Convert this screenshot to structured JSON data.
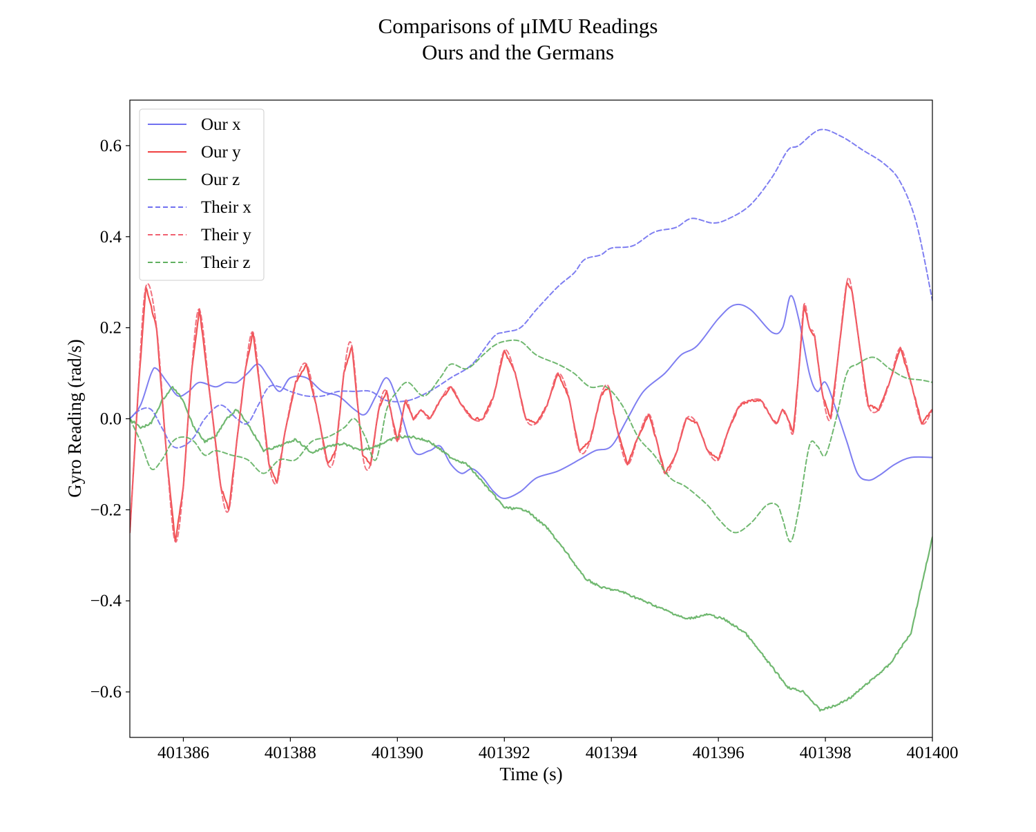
{
  "chart_data": {
    "type": "line",
    "title": [
      "Comparisons of μIMU Readings",
      "Ours and the Germans"
    ],
    "xlabel": "Time (s)",
    "ylabel": "Gyro Reading (rad/s)",
    "xlim": [
      401385,
      401400
    ],
    "ylim": [
      -0.7,
      0.7
    ],
    "xticks": [
      401386,
      401388,
      401390,
      401392,
      401394,
      401396,
      401398,
      401400
    ],
    "xtick_labels": [
      "401386",
      "401388",
      "401390",
      "401392",
      "401394",
      "401396",
      "401398",
      "401400"
    ],
    "yticks": [
      -0.6,
      -0.4,
      -0.2,
      0.0,
      0.2,
      0.4,
      0.6
    ],
    "ytick_labels": [
      "−0.6",
      "−0.4",
      "−0.2",
      "0.0",
      "0.2",
      "0.4",
      "0.6"
    ],
    "grid": false,
    "legend_position": "upper-left",
    "series": [
      {
        "name": "Our x",
        "color": "#7070f0",
        "style": "solid",
        "noisy": false,
        "x": [
          401385.0,
          401385.2,
          401385.4,
          401385.5,
          401385.7,
          401385.9,
          401386.1,
          401386.3,
          401386.6,
          401386.8,
          401387.0,
          401387.2,
          401387.4,
          401387.6,
          401387.8,
          401388.0,
          401388.3,
          401388.6,
          401388.9,
          401389.2,
          401389.4,
          401389.6,
          401389.8,
          401390.0,
          401390.3,
          401390.6,
          401390.8,
          401391.0,
          401391.2,
          401391.4,
          401391.6,
          401391.8,
          401392.0,
          401392.3,
          401392.6,
          401393.0,
          401393.4,
          401393.7,
          401394.0,
          401394.3,
          401394.6,
          401395.0,
          401395.3,
          401395.6,
          401396.0,
          401396.3,
          401396.6,
          401397.0,
          401397.2,
          401397.35,
          401397.5,
          401397.7,
          401397.85,
          401398.0,
          401398.2,
          401398.4,
          401398.6,
          401398.8,
          401399.0,
          401399.3,
          401399.6,
          401400.0
        ],
        "y": [
          0.0,
          0.03,
          0.1,
          0.11,
          0.08,
          0.05,
          0.06,
          0.08,
          0.07,
          0.08,
          0.08,
          0.1,
          0.12,
          0.09,
          0.06,
          0.09,
          0.09,
          0.06,
          0.05,
          0.02,
          0.01,
          0.05,
          0.09,
          0.04,
          -0.07,
          -0.07,
          -0.06,
          -0.1,
          -0.12,
          -0.11,
          -0.13,
          -0.16,
          -0.175,
          -0.16,
          -0.13,
          -0.115,
          -0.09,
          -0.07,
          -0.06,
          0.0,
          0.06,
          0.1,
          0.14,
          0.16,
          0.22,
          0.25,
          0.24,
          0.19,
          0.2,
          0.27,
          0.22,
          0.1,
          0.06,
          0.08,
          0.02,
          -0.05,
          -0.12,
          -0.135,
          -0.125,
          -0.1,
          -0.085,
          -0.085
        ]
      },
      {
        "name": "Our y",
        "color": "#f04040",
        "style": "solid",
        "noisy": true,
        "x": [
          401385.0,
          401385.15,
          401385.3,
          401385.5,
          401385.7,
          401385.85,
          401386.0,
          401386.15,
          401386.3,
          401386.5,
          401386.7,
          401386.85,
          401387.0,
          401387.15,
          401387.3,
          401387.45,
          401387.6,
          401387.75,
          401387.9,
          401388.1,
          401388.3,
          401388.5,
          401388.7,
          401388.85,
          401389.0,
          401389.15,
          401389.35,
          401389.5,
          401389.65,
          401389.8,
          401390.0,
          401390.15,
          401390.3,
          401390.45,
          401390.6,
          401390.8,
          401391.0,
          401391.2,
          401391.4,
          401391.6,
          401391.8,
          401392.0,
          401392.2,
          401392.4,
          401392.6,
          401392.8,
          401393.0,
          401393.2,
          401393.4,
          401393.6,
          401393.8,
          401393.95,
          401394.1,
          401394.3,
          401394.5,
          401394.7,
          401394.85,
          401395.0,
          401395.2,
          401395.4,
          401395.6,
          401395.8,
          401396.0,
          401396.2,
          401396.4,
          401396.6,
          401396.8,
          401397.0,
          401397.1,
          401397.2,
          401397.3,
          401397.4,
          401397.5,
          401397.6,
          401397.7,
          401397.8,
          401397.95,
          401398.1,
          401398.25,
          401398.4,
          401398.5,
          401398.65,
          401398.8,
          401399.0,
          401399.2,
          401399.4,
          401399.6,
          401399.8,
          401400.0
        ],
        "y": [
          -0.25,
          0.05,
          0.29,
          0.2,
          -0.1,
          -0.27,
          -0.15,
          0.1,
          0.24,
          0.05,
          -0.15,
          -0.2,
          -0.05,
          0.1,
          0.19,
          0.05,
          -0.1,
          -0.14,
          -0.03,
          0.08,
          0.12,
          0.02,
          -0.1,
          -0.07,
          0.1,
          0.16,
          -0.08,
          -0.1,
          0.02,
          0.06,
          -0.05,
          0.04,
          0.0,
          0.02,
          0.0,
          0.04,
          0.07,
          0.03,
          0.0,
          0.0,
          0.05,
          0.15,
          0.1,
          0.0,
          -0.01,
          0.03,
          0.1,
          0.05,
          -0.07,
          -0.05,
          0.05,
          0.07,
          -0.02,
          -0.1,
          -0.04,
          0.01,
          -0.05,
          -0.12,
          -0.08,
          0.0,
          -0.01,
          -0.07,
          -0.09,
          -0.02,
          0.03,
          0.04,
          0.04,
          0.0,
          -0.01,
          0.02,
          0.0,
          -0.03,
          0.1,
          0.25,
          0.2,
          0.18,
          0.05,
          0.0,
          0.15,
          0.3,
          0.28,
          0.15,
          0.03,
          0.02,
          0.08,
          0.155,
          0.08,
          -0.01,
          0.02
        ]
      },
      {
        "name": "Our z",
        "color": "#60b060",
        "style": "solid",
        "noisy": true,
        "x": [
          401385.0,
          401385.2,
          401385.4,
          401385.6,
          401385.8,
          401386.0,
          401386.2,
          401386.4,
          401386.6,
          401386.8,
          401387.0,
          401387.2,
          401387.5,
          401387.8,
          401388.1,
          401388.4,
          401388.7,
          401389.0,
          401389.3,
          401389.6,
          401390.0,
          401390.3,
          401390.6,
          401391.0,
          401391.3,
          401391.6,
          401392.0,
          401392.4,
          401392.8,
          401393.2,
          401393.5,
          401393.8,
          401394.2,
          401394.6,
          401395.0,
          401395.4,
          401395.8,
          401396.1,
          401396.5,
          401396.9,
          401397.3,
          401397.6,
          401397.9,
          401398.2,
          401398.5,
          401398.8,
          401399.2,
          401399.6,
          401400.0
        ],
        "y": [
          0.0,
          -0.02,
          -0.01,
          0.04,
          0.07,
          0.04,
          -0.02,
          -0.05,
          -0.04,
          0.0,
          0.02,
          -0.01,
          -0.07,
          -0.06,
          -0.045,
          -0.075,
          -0.06,
          -0.055,
          -0.07,
          -0.06,
          -0.04,
          -0.04,
          -0.05,
          -0.085,
          -0.1,
          -0.14,
          -0.195,
          -0.2,
          -0.24,
          -0.3,
          -0.35,
          -0.37,
          -0.38,
          -0.4,
          -0.42,
          -0.44,
          -0.43,
          -0.44,
          -0.47,
          -0.53,
          -0.59,
          -0.6,
          -0.64,
          -0.63,
          -0.61,
          -0.58,
          -0.54,
          -0.47,
          -0.26
        ]
      },
      {
        "name": "Their x",
        "color": "#7070f0",
        "style": "dashed",
        "noisy": false,
        "x": [
          401385.0,
          401385.2,
          401385.4,
          401385.6,
          401385.8,
          401386.0,
          401386.2,
          401386.4,
          401386.7,
          401387.0,
          401387.2,
          401387.4,
          401387.6,
          401387.8,
          401388.0,
          401388.3,
          401388.6,
          401388.9,
          401389.2,
          401389.5,
          401389.8,
          401390.2,
          401390.6,
          401391.0,
          401391.4,
          401391.8,
          401392.0,
          401392.3,
          401392.6,
          401393.0,
          401393.3,
          401393.5,
          401393.8,
          401394.0,
          401394.4,
          401394.8,
          401395.2,
          401395.5,
          401395.9,
          401396.2,
          401396.6,
          401397.0,
          401397.3,
          401397.5,
          401397.9,
          401398.3,
          401398.7,
          401399.1,
          401399.4,
          401399.7,
          401400.0
        ],
        "y": [
          0.0,
          0.02,
          0.02,
          -0.02,
          -0.06,
          -0.06,
          -0.04,
          0.0,
          0.03,
          0.0,
          -0.01,
          0.03,
          0.07,
          0.07,
          0.06,
          0.05,
          0.05,
          0.06,
          0.06,
          0.06,
          0.04,
          0.04,
          0.06,
          0.09,
          0.12,
          0.18,
          0.19,
          0.2,
          0.24,
          0.29,
          0.32,
          0.35,
          0.36,
          0.375,
          0.38,
          0.41,
          0.42,
          0.44,
          0.43,
          0.44,
          0.47,
          0.53,
          0.59,
          0.6,
          0.635,
          0.62,
          0.59,
          0.56,
          0.52,
          0.43,
          0.26
        ]
      },
      {
        "name": "Their y",
        "color": "#f06070",
        "style": "dashed",
        "noisy": false,
        "x": [
          401385.0,
          401385.15,
          401385.3,
          401385.5,
          401385.7,
          401385.85,
          401386.0,
          401386.15,
          401386.3,
          401386.5,
          401386.7,
          401386.85,
          401387.0,
          401387.15,
          401387.3,
          401387.45,
          401387.6,
          401387.75,
          401387.9,
          401388.1,
          401388.3,
          401388.5,
          401388.7,
          401388.85,
          401389.0,
          401389.15,
          401389.35,
          401389.5,
          401389.65,
          401389.8,
          401390.0,
          401390.15,
          401390.3,
          401390.45,
          401390.6,
          401390.8,
          401391.0,
          401391.2,
          401391.4,
          401391.6,
          401391.8,
          401392.0,
          401392.2,
          401392.4,
          401392.6,
          401392.8,
          401393.0,
          401393.2,
          401393.4,
          401393.6,
          401393.8,
          401393.95,
          401394.1,
          401394.3,
          401394.5,
          401394.7,
          401394.85,
          401395.0,
          401395.2,
          401395.4,
          401395.6,
          401395.8,
          401396.0,
          401396.2,
          401396.4,
          401396.6,
          401396.8,
          401397.0,
          401397.1,
          401397.2,
          401397.3,
          401397.4,
          401397.5,
          401397.6,
          401397.7,
          401397.8,
          401397.95,
          401398.1,
          401398.25,
          401398.4,
          401398.5,
          401398.65,
          401398.8,
          401399.0,
          401399.2,
          401399.4,
          401399.6,
          401399.8,
          401400.0
        ],
        "y": [
          -0.25,
          0.05,
          0.29,
          0.2,
          -0.1,
          -0.27,
          -0.15,
          0.1,
          0.24,
          0.05,
          -0.15,
          -0.2,
          -0.05,
          0.1,
          0.19,
          0.05,
          -0.1,
          -0.14,
          -0.03,
          0.08,
          0.12,
          0.02,
          -0.1,
          -0.07,
          0.1,
          0.16,
          -0.08,
          -0.1,
          0.02,
          0.06,
          -0.05,
          0.04,
          0.0,
          0.02,
          0.0,
          0.04,
          0.07,
          0.03,
          0.0,
          0.0,
          0.05,
          0.15,
          0.1,
          0.0,
          -0.01,
          0.03,
          0.1,
          0.05,
          -0.07,
          -0.05,
          0.05,
          0.07,
          -0.02,
          -0.1,
          -0.04,
          0.01,
          -0.05,
          -0.12,
          -0.08,
          0.0,
          -0.01,
          -0.07,
          -0.09,
          -0.02,
          0.03,
          0.04,
          0.04,
          0.0,
          -0.01,
          0.02,
          0.0,
          -0.03,
          0.1,
          0.25,
          0.2,
          0.18,
          0.05,
          0.0,
          0.15,
          0.3,
          0.28,
          0.15,
          0.03,
          0.02,
          0.08,
          0.155,
          0.08,
          -0.01,
          0.02
        ]
      },
      {
        "name": "Their z",
        "color": "#60b060",
        "style": "dashed",
        "noisy": false,
        "x": [
          401385.0,
          401385.2,
          401385.4,
          401385.6,
          401385.8,
          401386.0,
          401386.2,
          401386.4,
          401386.6,
          401386.9,
          401387.2,
          401387.5,
          401387.8,
          401388.1,
          401388.4,
          401388.7,
          401389.0,
          401389.2,
          401389.4,
          401389.6,
          401389.8,
          401390.0,
          401390.2,
          401390.5,
          401390.8,
          401391.0,
          401391.3,
          401391.6,
          401391.8,
          401392.0,
          401392.3,
          401392.6,
          401393.0,
          401393.3,
          401393.6,
          401393.9,
          401394.2,
          401394.5,
          401394.8,
          401395.1,
          401395.4,
          401395.8,
          401396.0,
          401396.3,
          401396.6,
          401396.9,
          401397.1,
          401397.2,
          401397.35,
          401397.5,
          401397.7,
          401397.85,
          401398.0,
          401398.2,
          401398.4,
          401398.6,
          401398.9,
          401399.2,
          401399.5,
          401399.8,
          401400.0
        ],
        "y": [
          0.0,
          -0.05,
          -0.11,
          -0.09,
          -0.05,
          -0.04,
          -0.05,
          -0.08,
          -0.07,
          -0.08,
          -0.09,
          -0.12,
          -0.09,
          -0.09,
          -0.05,
          -0.04,
          -0.02,
          0.0,
          -0.04,
          -0.09,
          0.02,
          0.06,
          0.08,
          0.05,
          0.09,
          0.12,
          0.11,
          0.14,
          0.16,
          0.17,
          0.17,
          0.14,
          0.12,
          0.1,
          0.07,
          0.07,
          0.03,
          -0.04,
          -0.08,
          -0.13,
          -0.15,
          -0.19,
          -0.22,
          -0.25,
          -0.23,
          -0.19,
          -0.19,
          -0.22,
          -0.27,
          -0.2,
          -0.06,
          -0.06,
          -0.08,
          0.0,
          0.1,
          0.12,
          0.135,
          0.11,
          0.09,
          0.085,
          0.08
        ]
      }
    ]
  }
}
